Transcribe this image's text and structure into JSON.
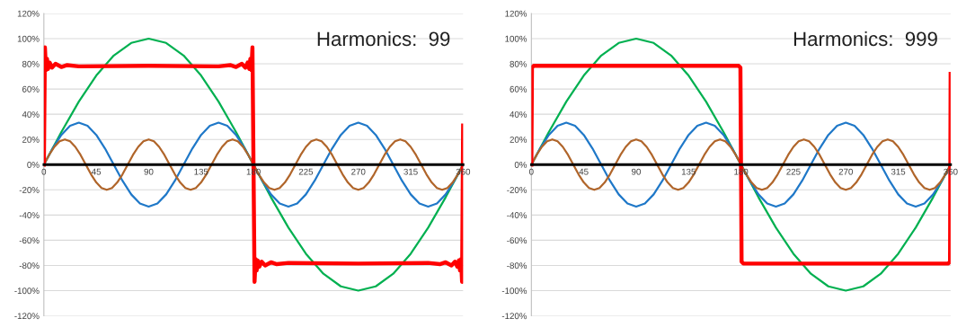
{
  "chart_data": [
    {
      "type": "line",
      "xlim": [
        0,
        360
      ],
      "xticks": [
        0,
        45,
        90,
        135,
        180,
        225,
        270,
        315,
        360
      ],
      "ylim": [
        -120,
        120
      ],
      "yticks": [
        {
          "value": -120,
          "label": "-120%"
        },
        {
          "value": -100,
          "label": "-100%"
        },
        {
          "value": -80,
          "label": "-80%"
        },
        {
          "value": -60,
          "label": "-60%"
        },
        {
          "value": -40,
          "label": "-40%"
        },
        {
          "value": -20,
          "label": "-20%"
        },
        {
          "value": 0,
          "label": "0%"
        },
        {
          "value": 20,
          "label": "20%"
        },
        {
          "value": 40,
          "label": "40%"
        },
        {
          "value": 60,
          "label": "60%"
        },
        {
          "value": 80,
          "label": "80%"
        },
        {
          "value": 100,
          "label": "100%"
        },
        {
          "value": 120,
          "label": "120%"
        }
      ],
      "grid": "y",
      "annotations": [
        "Harmonics:  99"
      ],
      "series": [
        {
          "color": "#00b050",
          "x": [
            0,
            15,
            30,
            45,
            60,
            75,
            90,
            105,
            120,
            135,
            150,
            165,
            180,
            195,
            210,
            225,
            240,
            255,
            270,
            285,
            300,
            315,
            330,
            345,
            360
          ],
          "values": [
            0,
            25.9,
            50,
            70.7,
            86.6,
            96.6,
            100,
            96.6,
            86.6,
            70.7,
            50,
            25.9,
            0,
            -25.9,
            -50,
            -70.7,
            -86.6,
            -96.6,
            -100,
            -96.6,
            -86.6,
            -70.7,
            -50,
            -25.9,
            0
          ]
        },
        {
          "color": "#1f78c8",
          "x": [
            0,
            7.5,
            15,
            22.5,
            30,
            37.5,
            45,
            52.5,
            60,
            67.5,
            75,
            82.5,
            90,
            97.5,
            105,
            112.5,
            120,
            127.5,
            135,
            142.5,
            150,
            157.5,
            165,
            172.5,
            180,
            187.5,
            195,
            202.5,
            210,
            217.5,
            225,
            232.5,
            240,
            247.5,
            255,
            262.5,
            270,
            277.5,
            285,
            292.5,
            300,
            307.5,
            315,
            322.5,
            330,
            337.5,
            345,
            352.5,
            360
          ],
          "values": [
            0,
            12.8,
            23.6,
            30.8,
            33.3,
            30.8,
            23.6,
            12.8,
            0,
            -12.8,
            -23.6,
            -30.8,
            -33.3,
            -30.8,
            -23.6,
            -12.8,
            0,
            12.8,
            23.6,
            30.8,
            33.3,
            30.8,
            23.6,
            12.8,
            0,
            -12.8,
            -23.6,
            -30.8,
            -33.3,
            -30.8,
            -23.6,
            -12.8,
            0,
            12.8,
            23.6,
            30.8,
            33.3,
            30.8,
            23.6,
            12.8,
            0,
            -12.8,
            -23.6,
            -30.8,
            -33.3,
            -30.8,
            -23.6,
            -12.8,
            0
          ]
        },
        {
          "color": "#b0652a",
          "x": [
            0,
            4.5,
            9,
            13.5,
            18,
            22.5,
            27,
            31.5,
            36,
            40.5,
            45,
            49.5,
            54,
            58.5,
            63,
            67.5,
            72,
            76.5,
            81,
            85.5,
            90,
            94.5,
            99,
            103.5,
            108,
            112.5,
            117,
            121.5,
            126,
            130.5,
            135,
            139.5,
            144,
            148.5,
            153,
            157.5,
            162,
            166.5,
            171,
            175.5,
            180,
            184.5,
            189,
            193.5,
            198,
            202.5,
            207,
            211.5,
            216,
            220.5,
            225,
            229.5,
            234,
            238.5,
            243,
            247.5,
            252,
            256.5,
            261,
            265.5,
            270,
            274.5,
            279,
            283.5,
            288,
            292.5,
            297,
            301.5,
            306,
            310.5,
            315,
            319.5,
            324,
            328.5,
            333,
            337.5,
            342,
            346.5,
            351,
            355.5,
            360
          ],
          "values": [
            0,
            7.7,
            14.1,
            18.5,
            20,
            18.5,
            14.1,
            7.7,
            0,
            -7.7,
            -14.1,
            -18.5,
            -20,
            -18.5,
            -14.1,
            -7.7,
            0,
            7.7,
            14.1,
            18.5,
            20,
            18.5,
            14.1,
            7.7,
            0,
            -7.7,
            -14.1,
            -18.5,
            -20,
            -18.5,
            -14.1,
            -7.7,
            0,
            7.7,
            14.1,
            18.5,
            20,
            18.5,
            14.1,
            7.7,
            0,
            -7.7,
            -14.1,
            -18.5,
            -20,
            -18.5,
            -14.1,
            -7.7,
            0,
            7.7,
            14.1,
            18.5,
            20,
            18.5,
            14.1,
            7.7,
            0,
            -7.7,
            -14.1,
            -18.5,
            -20,
            -18.5,
            -14.1,
            -7.7,
            0,
            7.7,
            14.1,
            18.5,
            20,
            18.5,
            14.1,
            7.7,
            0,
            -7.7,
            -14.1,
            -18.5,
            -20,
            -18.5,
            -14.1,
            -7.7,
            0
          ]
        },
        {
          "color": "#ff0000",
          "x": [
            0,
            0.9,
            1.8,
            2.7,
            3.6,
            5,
            7,
            10,
            15,
            20,
            30,
            90,
            150,
            160,
            165,
            170,
            173,
            175,
            176.4,
            177.3,
            178.2,
            179.1,
            180,
            180.9,
            181.8,
            182.7,
            183.6,
            185,
            187,
            190,
            195,
            200,
            210,
            270,
            330,
            340,
            345,
            350,
            353,
            355,
            356.4,
            357.3,
            358.2,
            359.1,
            360
          ],
          "values": [
            0,
            93,
            75,
            84,
            76,
            81,
            77,
            80,
            77.5,
            79,
            78,
            78.5,
            78,
            79,
            77.5,
            80,
            77,
            81,
            76,
            84,
            75,
            93,
            0,
            -93,
            -75,
            -84,
            -76,
            -81,
            -77,
            -80,
            -77.5,
            -79,
            -78,
            -78.5,
            -78,
            -79,
            -77.5,
            -80,
            -77,
            -81,
            -76,
            -84,
            -75,
            -93,
            31
          ]
        }
      ]
    },
    {
      "type": "line",
      "xlim": [
        0,
        360
      ],
      "xticks": [
        0,
        45,
        90,
        135,
        180,
        225,
        270,
        315,
        360
      ],
      "ylim": [
        -120,
        120
      ],
      "yticks": [
        {
          "value": -120,
          "label": "-120%"
        },
        {
          "value": -100,
          "label": "-100%"
        },
        {
          "value": -80,
          "label": "-80%"
        },
        {
          "value": -60,
          "label": "-60%"
        },
        {
          "value": -40,
          "label": "-40%"
        },
        {
          "value": -20,
          "label": "-20%"
        },
        {
          "value": 0,
          "label": "0%"
        },
        {
          "value": 20,
          "label": "20%"
        },
        {
          "value": 40,
          "label": "40%"
        },
        {
          "value": 60,
          "label": "60%"
        },
        {
          "value": 80,
          "label": "80%"
        },
        {
          "value": 100,
          "label": "100%"
        },
        {
          "value": 120,
          "label": "120%"
        }
      ],
      "grid": "y",
      "annotations": [
        "Harmonics:  999"
      ],
      "series": [
        {
          "color": "#00b050",
          "x": [
            0,
            15,
            30,
            45,
            60,
            75,
            90,
            105,
            120,
            135,
            150,
            165,
            180,
            195,
            210,
            225,
            240,
            255,
            270,
            285,
            300,
            315,
            330,
            345,
            360
          ],
          "values": [
            0,
            25.9,
            50,
            70.7,
            86.6,
            96.6,
            100,
            96.6,
            86.6,
            70.7,
            50,
            25.9,
            0,
            -25.9,
            -50,
            -70.7,
            -86.6,
            -96.6,
            -100,
            -96.6,
            -86.6,
            -70.7,
            -50,
            -25.9,
            0
          ]
        },
        {
          "color": "#1f78c8",
          "x": [
            0,
            7.5,
            15,
            22.5,
            30,
            37.5,
            45,
            52.5,
            60,
            67.5,
            75,
            82.5,
            90,
            97.5,
            105,
            112.5,
            120,
            127.5,
            135,
            142.5,
            150,
            157.5,
            165,
            172.5,
            180,
            187.5,
            195,
            202.5,
            210,
            217.5,
            225,
            232.5,
            240,
            247.5,
            255,
            262.5,
            270,
            277.5,
            285,
            292.5,
            300,
            307.5,
            315,
            322.5,
            330,
            337.5,
            345,
            352.5,
            360
          ],
          "values": [
            0,
            12.8,
            23.6,
            30.8,
            33.3,
            30.8,
            23.6,
            12.8,
            0,
            -12.8,
            -23.6,
            -30.8,
            -33.3,
            -30.8,
            -23.6,
            -12.8,
            0,
            12.8,
            23.6,
            30.8,
            33.3,
            30.8,
            23.6,
            12.8,
            0,
            -12.8,
            -23.6,
            -30.8,
            -33.3,
            -30.8,
            -23.6,
            -12.8,
            0,
            12.8,
            23.6,
            30.8,
            33.3,
            30.8,
            23.6,
            12.8,
            0,
            -12.8,
            -23.6,
            -30.8,
            -33.3,
            -30.8,
            -23.6,
            -12.8,
            0
          ]
        },
        {
          "color": "#b0652a",
          "x": [
            0,
            4.5,
            9,
            13.5,
            18,
            22.5,
            27,
            31.5,
            36,
            40.5,
            45,
            49.5,
            54,
            58.5,
            63,
            67.5,
            72,
            76.5,
            81,
            85.5,
            90,
            94.5,
            99,
            103.5,
            108,
            112.5,
            117,
            121.5,
            126,
            130.5,
            135,
            139.5,
            144,
            148.5,
            153,
            157.5,
            162,
            166.5,
            171,
            175.5,
            180,
            184.5,
            189,
            193.5,
            198,
            202.5,
            207,
            211.5,
            216,
            220.5,
            225,
            229.5,
            234,
            238.5,
            243,
            247.5,
            252,
            256.5,
            261,
            265.5,
            270,
            274.5,
            279,
            283.5,
            288,
            292.5,
            297,
            301.5,
            306,
            310.5,
            315,
            319.5,
            324,
            328.5,
            333,
            337.5,
            342,
            346.5,
            351,
            355.5,
            360
          ],
          "values": [
            0,
            7.7,
            14.1,
            18.5,
            20,
            18.5,
            14.1,
            7.7,
            0,
            -7.7,
            -14.1,
            -18.5,
            -20,
            -18.5,
            -14.1,
            -7.7,
            0,
            7.7,
            14.1,
            18.5,
            20,
            18.5,
            14.1,
            7.7,
            0,
            -7.7,
            -14.1,
            -18.5,
            -20,
            -18.5,
            -14.1,
            -7.7,
            0,
            7.7,
            14.1,
            18.5,
            20,
            18.5,
            14.1,
            7.7,
            0,
            -7.7,
            -14.1,
            -18.5,
            -20,
            -18.5,
            -14.1,
            -7.7,
            0,
            7.7,
            14.1,
            18.5,
            20,
            18.5,
            14.1,
            7.7,
            0,
            -7.7,
            -14.1,
            -18.5,
            -20,
            -18.5,
            -14.1,
            -7.7,
            0,
            7.7,
            14.1,
            18.5,
            20,
            18.5,
            14.1,
            7.7,
            0,
            -7.7,
            -14.1,
            -18.5,
            -20,
            -18.5,
            -14.1,
            -7.7,
            0
          ]
        },
        {
          "color": "#ff0000",
          "x": [
            0,
            0.5,
            2,
            10,
            90,
            170,
            178,
            179.5,
            180,
            180.5,
            182,
            190,
            270,
            350,
            358,
            359.5,
            360
          ],
          "values": [
            0,
            77,
            78.5,
            78.5,
            78.5,
            78.5,
            78.5,
            77,
            0,
            -77,
            -78.5,
            -78.5,
            -78.5,
            -78.5,
            -78.5,
            -77,
            72
          ]
        }
      ]
    }
  ]
}
